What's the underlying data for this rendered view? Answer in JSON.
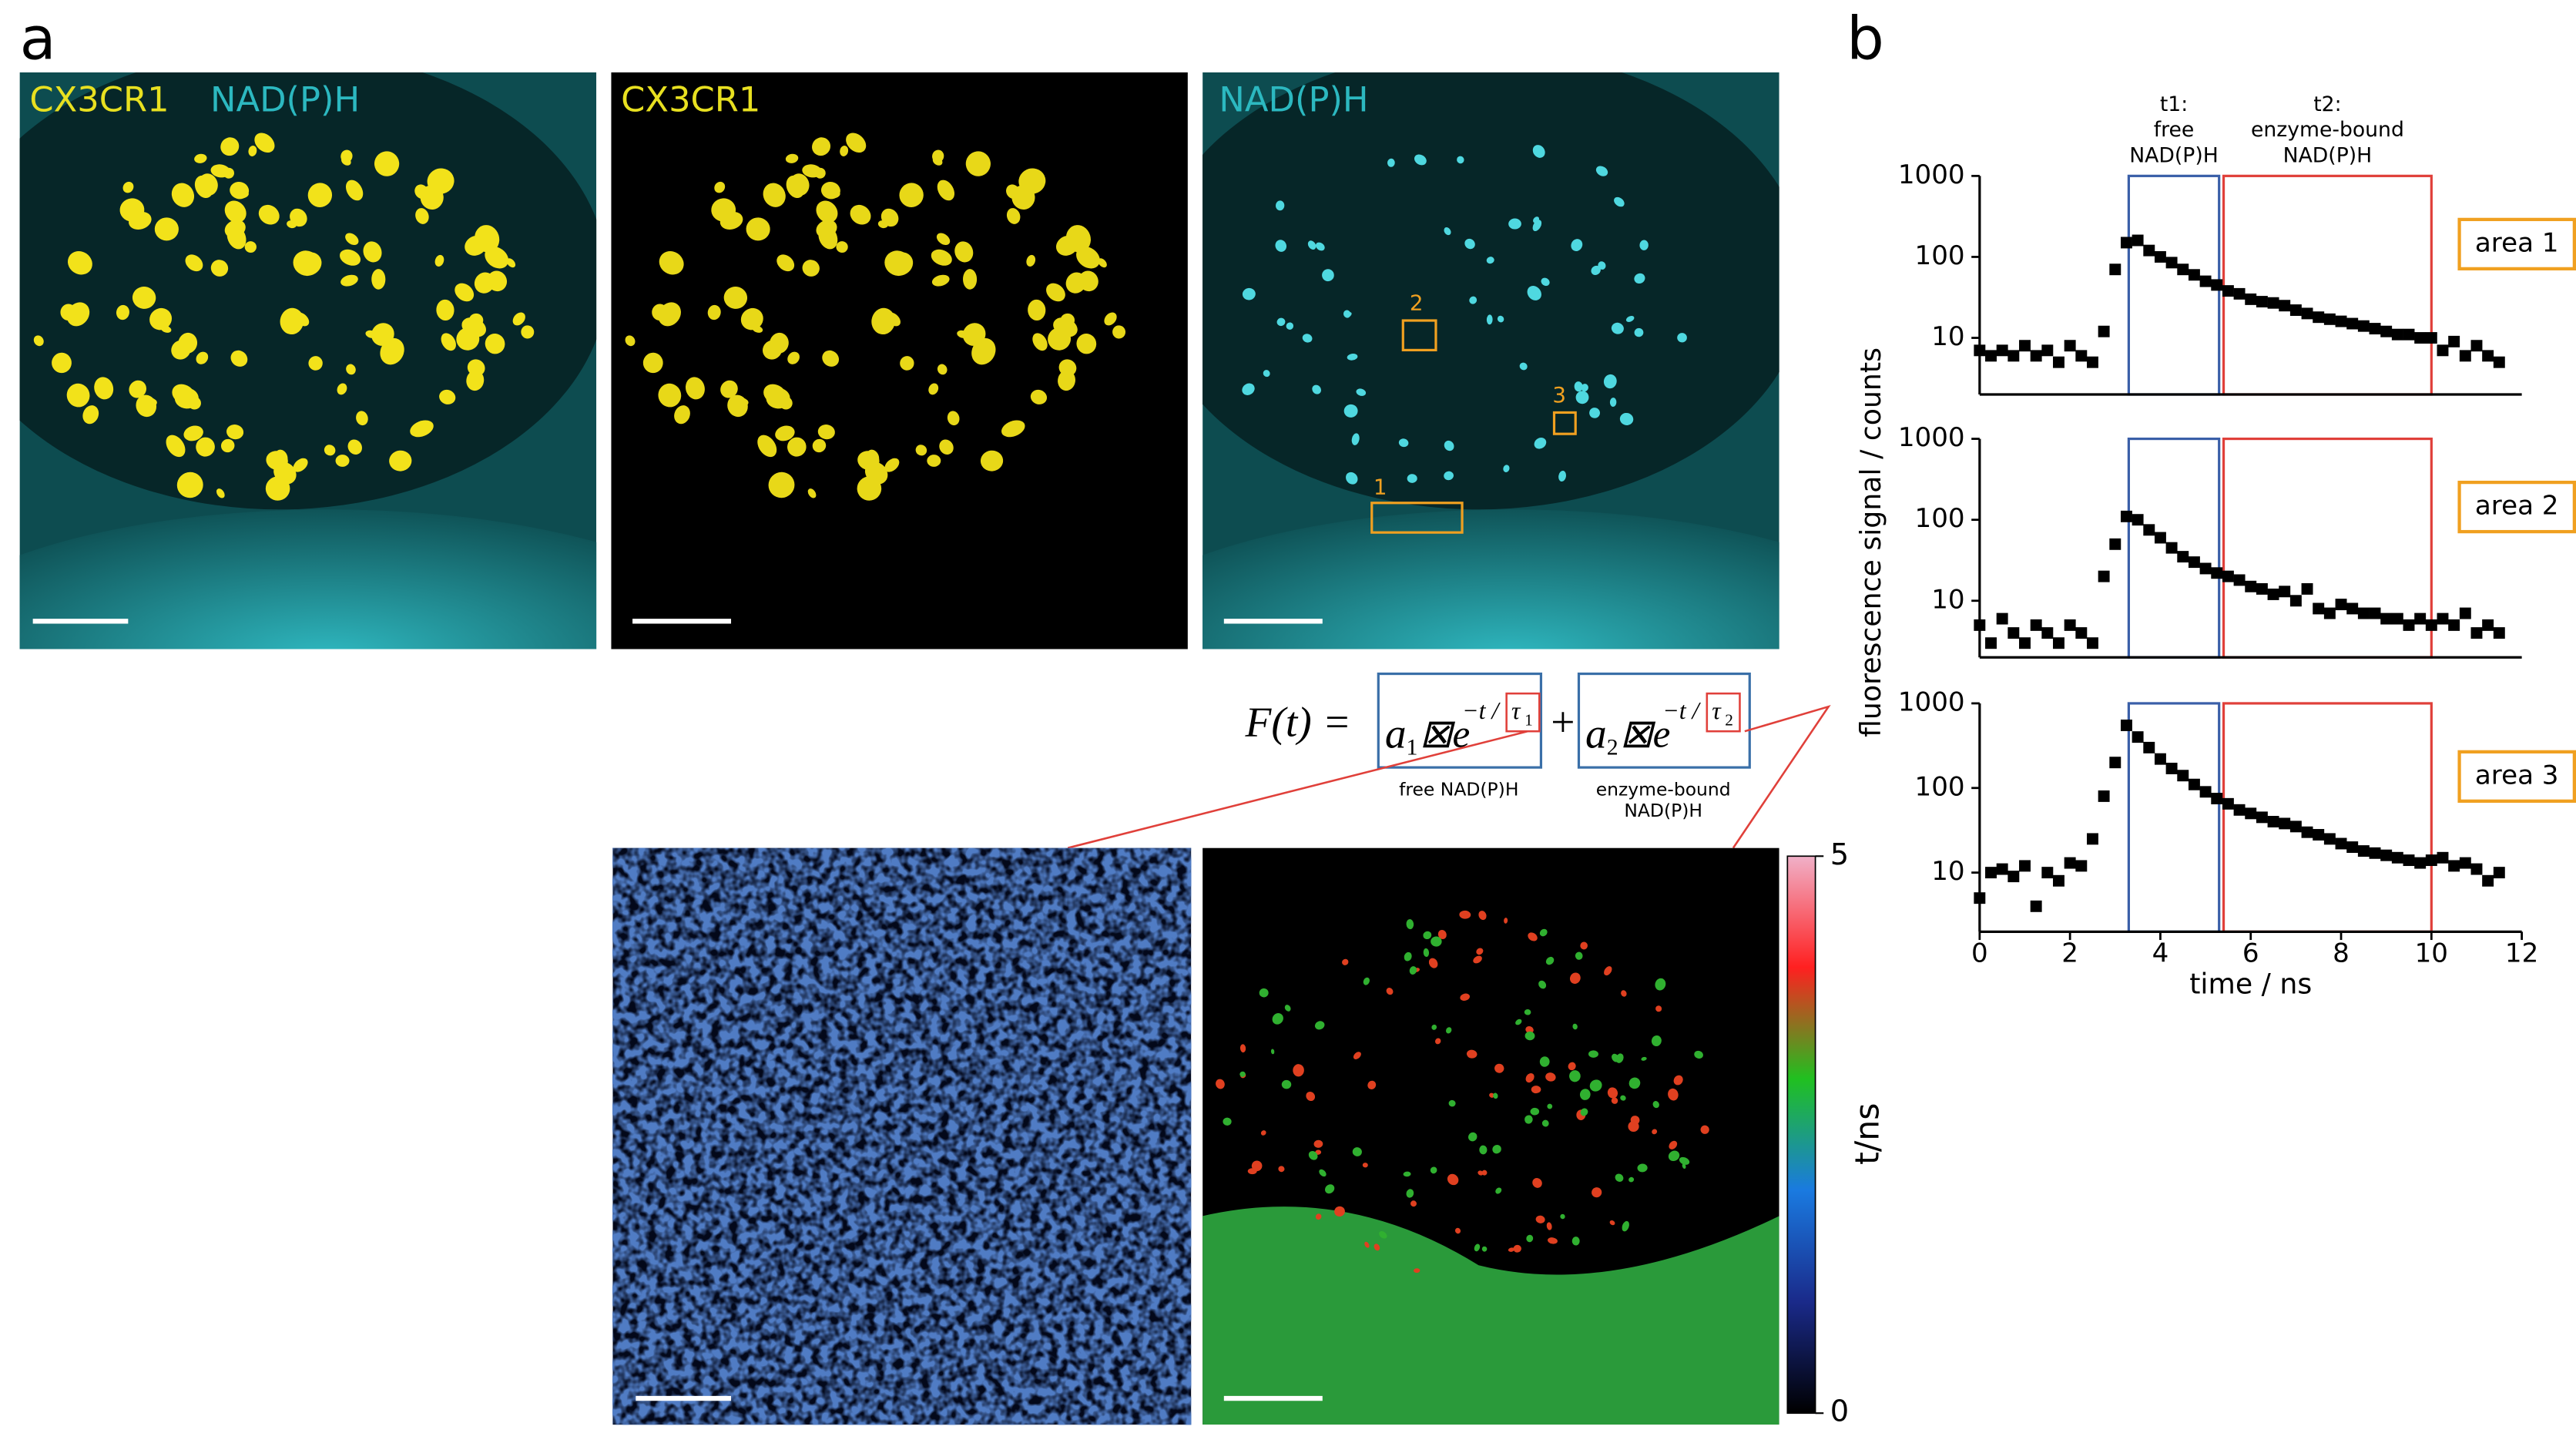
{
  "figure": {
    "panel_a": "a",
    "panel_b": "b",
    "images": [
      {
        "labels": [
          "CX3CR1",
          "NAD(P)H"
        ]
      },
      {
        "labels": [
          "CX3CR1"
        ]
      },
      {
        "labels": [
          "NAD(P)H"
        ],
        "rois": [
          "2",
          "3",
          "1"
        ]
      }
    ],
    "formula": {
      "lhs": "F(t) =",
      "plus": "+",
      "terms": [
        {
          "coef": "a",
          "index": "1",
          "factor": "⊠e",
          "exponent": "−t /",
          "tau": "τ",
          "tau_index": "1",
          "caption": [
            "free NAD(P)H"
          ]
        },
        {
          "coef": "a",
          "index": "2",
          "factor": "⊠e",
          "exponent": "−t /",
          "tau": "τ",
          "tau_index": "2",
          "caption": [
            "enzyme-bound",
            "NAD(P)H"
          ]
        }
      ]
    },
    "colorbar": {
      "lim": [
        0,
        5
      ],
      "ticks": [
        0,
        5
      ],
      "label": "t/ns"
    },
    "y_axis_label": "fluorescence signal / counts"
  },
  "chart_data": [
    {
      "type": "scatter",
      "label": "area 1",
      "ylog": true,
      "ylim": [
        2,
        1000
      ],
      "yticks": [
        10,
        100,
        1000
      ],
      "xlim": [
        0,
        12
      ],
      "windows": [
        {
          "x": [
            3.3,
            5.3
          ],
          "color": "#3a5fa8",
          "label": [
            "t1:",
            "free",
            "NAD(P)H"
          ]
        },
        {
          "x": [
            5.4,
            10
          ],
          "color": "#e0403a",
          "label": [
            "t2:",
            "enzyme-bound",
            "NAD(P)H"
          ]
        }
      ],
      "x": [
        0,
        0.25,
        0.5,
        0.75,
        1,
        1.25,
        1.5,
        1.75,
        2,
        2.25,
        2.5,
        2.75,
        3,
        3.25,
        3.5,
        3.75,
        4,
        4.25,
        4.5,
        4.75,
        5,
        5.25,
        5.5,
        5.75,
        6,
        6.25,
        6.5,
        6.75,
        7,
        7.25,
        7.5,
        7.75,
        8,
        8.25,
        8.5,
        8.75,
        9,
        9.25,
        9.5,
        9.75,
        10,
        10.25,
        10.5,
        10.75,
        11,
        11.25,
        11.5
      ],
      "series": [
        {
          "color": "#000000",
          "values": [
            7,
            6,
            7,
            6,
            8,
            6,
            7,
            5,
            8,
            6,
            5,
            12,
            70,
            150,
            160,
            120,
            100,
            85,
            70,
            60,
            50,
            45,
            38,
            35,
            30,
            28,
            27,
            25,
            22,
            20,
            18,
            17,
            16,
            15,
            14,
            13,
            12,
            11,
            11,
            10,
            10,
            7,
            9,
            6,
            8,
            6,
            5
          ]
        }
      ]
    },
    {
      "type": "scatter",
      "label": "area 2",
      "ylog": true,
      "ylim": [
        2,
        1000
      ],
      "yticks": [
        10,
        100,
        1000
      ],
      "xlim": [
        0,
        12
      ],
      "windows": [
        {
          "x": [
            3.3,
            5.3
          ],
          "color": "#3a5fa8"
        },
        {
          "x": [
            5.4,
            10
          ],
          "color": "#e0403a"
        }
      ],
      "x": [
        0,
        0.25,
        0.5,
        0.75,
        1,
        1.25,
        1.5,
        1.75,
        2,
        2.25,
        2.5,
        2.75,
        3,
        3.25,
        3.5,
        3.75,
        4,
        4.25,
        4.5,
        4.75,
        5,
        5.25,
        5.5,
        5.75,
        6,
        6.25,
        6.5,
        6.75,
        7,
        7.25,
        7.5,
        7.75,
        8,
        8.25,
        8.5,
        8.75,
        9,
        9.25,
        9.5,
        9.75,
        10,
        10.25,
        10.5,
        10.75,
        11,
        11.25,
        11.5
      ],
      "series": [
        {
          "color": "#000000",
          "values": [
            5,
            3,
            6,
            4,
            3,
            5,
            4,
            3,
            5,
            4,
            3,
            20,
            50,
            110,
            100,
            75,
            60,
            45,
            35,
            30,
            25,
            22,
            20,
            18,
            15,
            14,
            12,
            13,
            10,
            14,
            8,
            7,
            9,
            8,
            7,
            7,
            6,
            6,
            5,
            6,
            5,
            6,
            5,
            7,
            4,
            5,
            4
          ]
        }
      ]
    },
    {
      "type": "scatter",
      "label": "area 3",
      "ylog": true,
      "ylim": [
        2,
        1000
      ],
      "yticks": [
        10,
        100,
        1000
      ],
      "xlim": [
        0,
        12
      ],
      "xticks": [
        0,
        2,
        4,
        6,
        8,
        10,
        12
      ],
      "x_label": "time / ns",
      "windows": [
        {
          "x": [
            3.3,
            5.3
          ],
          "color": "#3a5fa8"
        },
        {
          "x": [
            5.4,
            10
          ],
          "color": "#e0403a"
        }
      ],
      "x": [
        0,
        0.25,
        0.5,
        0.75,
        1,
        1.25,
        1.5,
        1.75,
        2,
        2.25,
        2.5,
        2.75,
        3,
        3.25,
        3.5,
        3.75,
        4,
        4.25,
        4.5,
        4.75,
        5,
        5.25,
        5.5,
        5.75,
        6,
        6.25,
        6.5,
        6.75,
        7,
        7.25,
        7.5,
        7.75,
        8,
        8.25,
        8.5,
        8.75,
        9,
        9.25,
        9.5,
        9.75,
        10,
        10.25,
        10.5,
        10.75,
        11,
        11.25,
        11.5
      ],
      "series": [
        {
          "color": "#000000",
          "values": [
            5,
            10,
            11,
            9,
            12,
            4,
            10,
            8,
            13,
            12,
            25,
            80,
            200,
            550,
            400,
            300,
            220,
            170,
            140,
            110,
            90,
            75,
            65,
            55,
            50,
            45,
            40,
            38,
            35,
            30,
            28,
            25,
            22,
            20,
            18,
            17,
            16,
            15,
            14,
            13,
            14,
            15,
            12,
            13,
            11,
            8,
            10
          ]
        }
      ]
    }
  ]
}
